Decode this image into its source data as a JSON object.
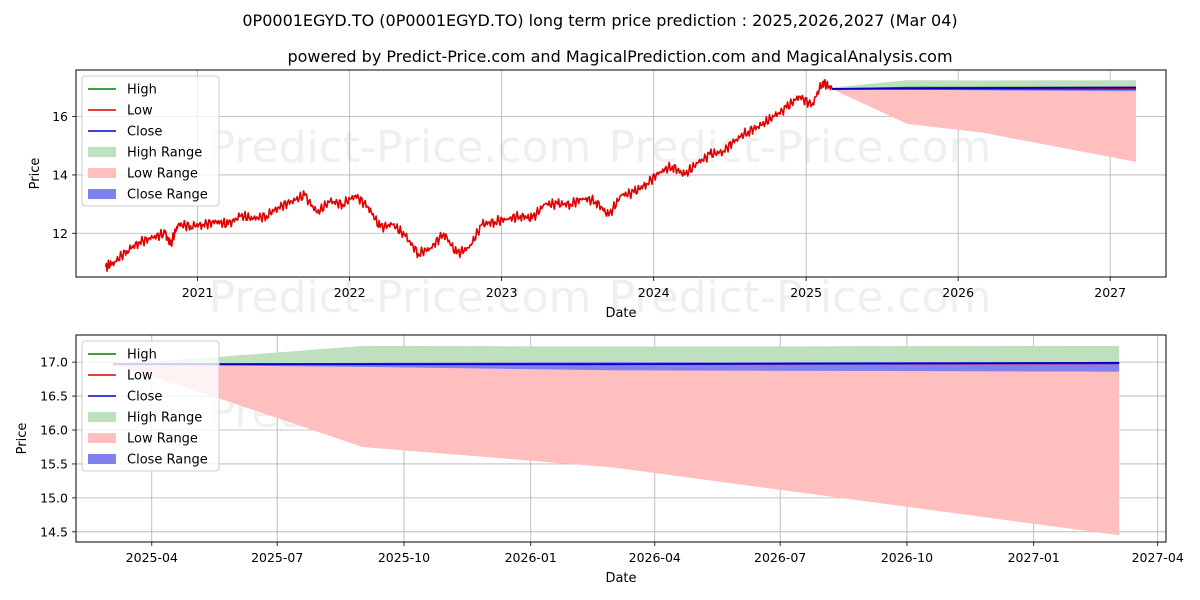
{
  "title": "0P0001EGYD.TO (0P0001EGYD.TO) long term price prediction : 2025,2026,2027 (Mar 04)",
  "subtitle": "powered by Predict-Price.com and MagicalPrediction.com and MagicalAnalysis.com",
  "watermark": "Predict-Price.com",
  "colors": {
    "high": "#008000",
    "low": "#e00000",
    "close": "#0000cc",
    "high_range": "#bfe0bf",
    "low_range": "#ffbfbf",
    "close_range": "#8080f0",
    "grid": "#b0b0b0"
  },
  "chart_data": [
    {
      "type": "line",
      "xlabel": "Date",
      "ylabel": "Price",
      "xlim": [
        "2020-03-15",
        "2027-05-15"
      ],
      "ylim": [
        10.5,
        17.6
      ],
      "x_ticks": [
        "2021",
        "2022",
        "2023",
        "2024",
        "2025",
        "2026",
        "2027"
      ],
      "y_ticks": [
        12,
        14,
        16
      ],
      "grid": true,
      "legend_position": "top-left",
      "legend": [
        "High",
        "Low",
        "Close",
        "High Range",
        "Low Range",
        "Close Range"
      ],
      "history": {
        "name": "Low",
        "dates": [
          "2020-05-25",
          "2020-06-15",
          "2020-07-15",
          "2020-08-15",
          "2020-09-15",
          "2020-10-15",
          "2020-10-28",
          "2020-11-15",
          "2020-12-15",
          "2021-01-15",
          "2021-02-15",
          "2021-03-15",
          "2021-04-15",
          "2021-05-15",
          "2021-06-15",
          "2021-07-15",
          "2021-08-15",
          "2021-09-15",
          "2021-10-15",
          "2021-11-15",
          "2021-12-15",
          "2022-01-15",
          "2022-02-15",
          "2022-03-15",
          "2022-04-15",
          "2022-05-15",
          "2022-06-15",
          "2022-07-15",
          "2022-08-15",
          "2022-09-15",
          "2022-10-15",
          "2022-11-15",
          "2022-12-15",
          "2023-01-15",
          "2023-02-15",
          "2023-03-15",
          "2023-04-15",
          "2023-05-15",
          "2023-06-15",
          "2023-07-15",
          "2023-08-15",
          "2023-09-15",
          "2023-10-15",
          "2023-11-15",
          "2023-12-15",
          "2024-01-15",
          "2024-02-15",
          "2024-03-15",
          "2024-04-15",
          "2024-05-15",
          "2024-06-15",
          "2024-07-15",
          "2024-08-15",
          "2024-09-15",
          "2024-10-15",
          "2024-11-15",
          "2024-12-15",
          "2025-01-15",
          "2025-02-10",
          "2025-03-04"
        ],
        "values": [
          10.85,
          11.0,
          11.4,
          11.7,
          11.85,
          12.0,
          11.6,
          12.3,
          12.25,
          12.3,
          12.4,
          12.3,
          12.6,
          12.5,
          12.6,
          12.9,
          13.1,
          13.3,
          12.7,
          13.1,
          13.0,
          13.3,
          12.9,
          12.2,
          12.3,
          11.9,
          11.3,
          11.5,
          12.0,
          11.3,
          11.5,
          12.3,
          12.4,
          12.5,
          12.6,
          12.5,
          13.0,
          13.0,
          13.0,
          13.2,
          13.1,
          12.6,
          13.3,
          13.4,
          13.7,
          14.1,
          14.3,
          14.0,
          14.4,
          14.7,
          14.8,
          15.2,
          15.5,
          15.7,
          16.0,
          16.3,
          16.7,
          16.4,
          17.2,
          16.95
        ]
      },
      "forecast": {
        "dates": [
          "2025-03-04",
          "2025-09-01",
          "2026-03-01",
          "2027-03-04"
        ],
        "high": [
          16.95,
          17.0,
          17.0,
          17.0
        ],
        "low": [
          16.95,
          16.95,
          16.95,
          16.95
        ],
        "close": [
          16.95,
          16.97,
          16.98,
          17.0
        ],
        "high_range": [
          [
            16.95,
            17.0
          ],
          [
            16.95,
            17.25
          ],
          [
            16.95,
            17.24
          ],
          [
            16.95,
            17.25
          ]
        ],
        "low_range": [
          [
            16.95,
            16.95
          ],
          [
            15.75,
            16.95
          ],
          [
            15.45,
            16.9
          ],
          [
            14.45,
            16.87
          ]
        ],
        "close_range": [
          [
            16.95,
            16.97
          ],
          [
            16.93,
            16.99
          ],
          [
            16.9,
            17.0
          ],
          [
            16.87,
            17.0
          ]
        ]
      }
    },
    {
      "type": "line",
      "xlabel": "Date",
      "ylabel": "Price",
      "xlim": [
        "2025-02-05",
        "2027-04-07"
      ],
      "ylim": [
        14.35,
        17.4
      ],
      "x_ticks": [
        "2025-04",
        "2025-07",
        "2025-10",
        "2026-01",
        "2026-04",
        "2026-07",
        "2026-10",
        "2027-01",
        "2027-04"
      ],
      "y_ticks": [
        14.5,
        15.0,
        15.5,
        16.0,
        16.5,
        17.0
      ],
      "y_tick_labels": [
        "14.5",
        "15.0",
        "15.5",
        "16.0",
        "16.5",
        "17.0"
      ],
      "grid": true,
      "legend_position": "top-left",
      "legend": [
        "High",
        "Low",
        "Close",
        "High Range",
        "Low Range",
        "Close Range"
      ],
      "forecast": {
        "dates": [
          "2025-03-04",
          "2025-05-15",
          "2025-09-01",
          "2026-03-01",
          "2027-03-04"
        ],
        "high": [
          16.97,
          16.97,
          16.97,
          16.97,
          16.99
        ],
        "low": [
          16.97,
          16.97,
          16.97,
          16.97,
          16.98
        ],
        "close": [
          16.97,
          16.97,
          16.97,
          16.97,
          16.99
        ],
        "high_range": [
          [
            16.97,
            16.97
          ],
          [
            16.97,
            17.07
          ],
          [
            16.97,
            17.24
          ],
          [
            16.97,
            17.23
          ],
          [
            16.99,
            17.24
          ]
        ],
        "low_range": [
          [
            16.97,
            16.97
          ],
          [
            16.5,
            16.97
          ],
          [
            15.75,
            16.95
          ],
          [
            15.45,
            16.9
          ],
          [
            14.45,
            16.87
          ]
        ],
        "close_range": [
          [
            16.97,
            16.97
          ],
          [
            16.95,
            16.98
          ],
          [
            16.93,
            16.99
          ],
          [
            16.88,
            17.0
          ],
          [
            16.86,
            17.0
          ]
        ]
      }
    }
  ]
}
